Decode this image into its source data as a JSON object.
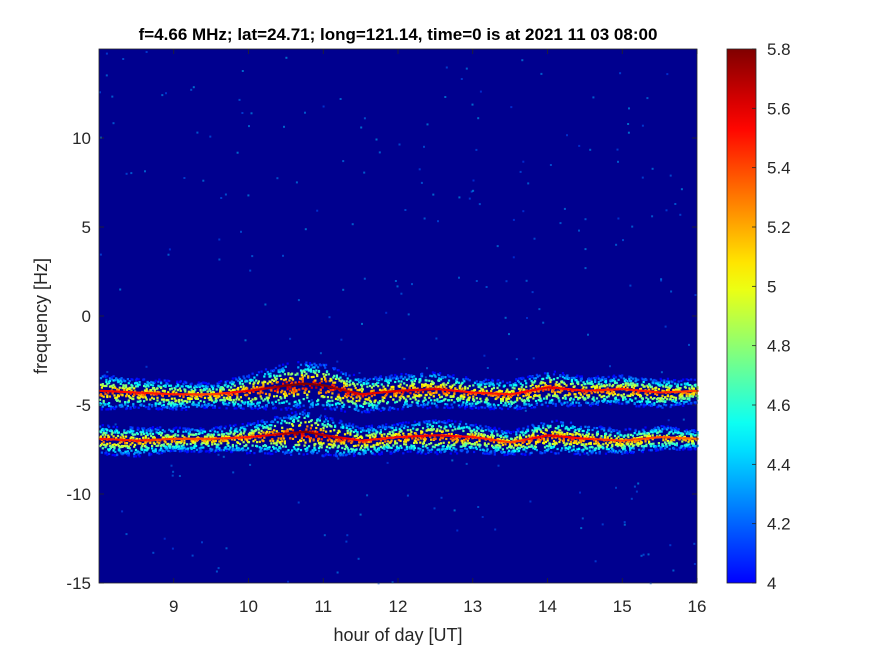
{
  "chart_data": {
    "type": "heatmap",
    "title": "f=4.66 MHz;  lat=24.71; long=121.14, time=0 is at 2021 11 03 08:00",
    "xlabel": "hour of day [UT]",
    "ylabel": "frequency [Hz]",
    "xlim": [
      8,
      16
    ],
    "ylim": [
      -15,
      15
    ],
    "xticks": [
      9,
      10,
      11,
      12,
      13,
      14,
      15,
      16
    ],
    "xtick_labels": [
      "9",
      "10",
      "11",
      "12",
      "13",
      "14",
      "15",
      "16"
    ],
    "yticks": [
      -15,
      -10,
      -5,
      0,
      5,
      10
    ],
    "ytick_labels": [
      "-15",
      "-10",
      "-5",
      "0",
      "5",
      "10"
    ],
    "colorbar": {
      "range": [
        4,
        5.8
      ],
      "ticks": [
        4,
        4.2,
        4.4,
        4.6,
        4.8,
        5,
        5.2,
        5.4,
        5.6,
        5.8
      ],
      "tick_labels": [
        "4",
        "4.2",
        "4.4",
        "4.6",
        "4.8",
        "5",
        "5.2",
        "5.4",
        "5.6",
        "5.8"
      ],
      "colormap": "jet"
    },
    "background_value": 4.0,
    "series": [
      {
        "x": [
          8.0,
          8.5,
          9.0,
          9.5,
          10.0,
          10.5,
          10.75,
          11.0,
          11.5,
          12.0,
          12.5,
          13.0,
          13.5,
          14.0,
          14.5,
          15.0,
          15.5,
          16.0
        ],
        "y": [
          -4.2,
          -4.3,
          -4.4,
          -4.4,
          -4.2,
          -3.9,
          -3.8,
          -3.9,
          -4.4,
          -4.2,
          -4.1,
          -4.3,
          -4.4,
          -4.0,
          -4.2,
          -4.1,
          -4.3,
          -4.2
        ],
        "intensity": [
          5.6,
          5.5,
          5.5,
          5.4,
          5.6,
          5.8,
          5.8,
          5.8,
          5.6,
          5.6,
          5.6,
          5.5,
          5.5,
          5.6,
          5.5,
          5.5,
          5.5,
          5.4
        ]
      },
      {
        "x": [
          8.0,
          8.5,
          9.0,
          9.5,
          10.0,
          10.5,
          10.75,
          11.0,
          11.5,
          12.0,
          12.5,
          13.0,
          13.5,
          14.0,
          14.5,
          15.0,
          15.5,
          16.0
        ],
        "y": [
          -6.9,
          -7.0,
          -6.9,
          -6.9,
          -6.8,
          -6.6,
          -6.5,
          -6.7,
          -7.0,
          -6.8,
          -6.7,
          -6.8,
          -7.1,
          -6.7,
          -6.9,
          -7.0,
          -6.8,
          -6.9
        ],
        "intensity": [
          5.5,
          5.5,
          5.4,
          5.4,
          5.5,
          5.7,
          5.8,
          5.7,
          5.5,
          5.5,
          5.6,
          5.5,
          5.4,
          5.6,
          5.5,
          5.4,
          5.4,
          5.3
        ]
      }
    ],
    "grid": false,
    "legend": "none",
    "colors": {
      "background": "#00008F",
      "frame": "#262626"
    }
  }
}
